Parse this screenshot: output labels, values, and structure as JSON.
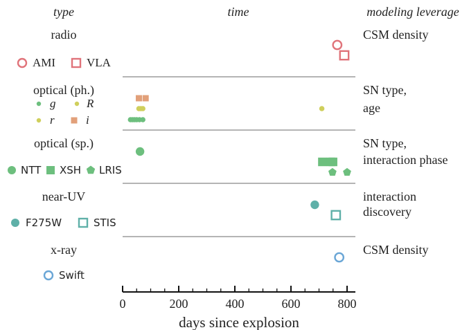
{
  "chart_data": {
    "type": "scatter",
    "column_headers": {
      "type": "type",
      "time": "time",
      "leverage": "modeling leverage"
    },
    "xlabel": "days since explosion",
    "xlim": [
      0,
      860
    ],
    "xticks": [
      0,
      200,
      400,
      600,
      800
    ],
    "rows": [
      {
        "id": "radio",
        "label": "radio",
        "leverage": [
          "CSM density"
        ],
        "instruments": [
          {
            "name": "AMI",
            "color": "#e0737a",
            "marker": "circle-open",
            "points": [
              765
            ]
          },
          {
            "name": "VLA",
            "color": "#e0737a",
            "marker": "square-open",
            "points": [
              790
            ]
          }
        ]
      },
      {
        "id": "optical-ph",
        "label": "optical (ph.)",
        "leverage": [
          "SN type,",
          "age"
        ],
        "instruments": [
          {
            "name": "g",
            "color": "#6dbf7e",
            "marker": "dot",
            "points": [
              28,
              35,
              42,
              50,
              60,
              72
            ]
          },
          {
            "name": "R",
            "color": "#cfcf5c",
            "marker": "dot",
            "points": [
              710
            ]
          },
          {
            "name": "r",
            "color": "#cfcf5c",
            "marker": "dot",
            "points": [
              58,
              65,
              72
            ]
          },
          {
            "name": "i",
            "color": "#e2a07a",
            "marker": "square",
            "points": [
              58,
              82
            ]
          }
        ]
      },
      {
        "id": "optical-sp",
        "label": "optical (sp.)",
        "leverage": [
          "SN type,",
          "interaction phase"
        ],
        "instruments": [
          {
            "name": "NTT",
            "color": "#6dbf7e",
            "marker": "circle",
            "points": [
              62
            ]
          },
          {
            "name": "XSH",
            "color": "#6dbf7e",
            "marker": "square",
            "points": [
              712,
              742,
              750
            ]
          },
          {
            "name": "LRIS",
            "color": "#6dbf7e",
            "marker": "pentagon",
            "points": [
              748,
              800
            ]
          }
        ]
      },
      {
        "id": "near-uv",
        "label": "near-UV",
        "leverage": [
          "interaction",
          "discovery"
        ],
        "instruments": [
          {
            "name": "F275W",
            "color": "#5fb0a8",
            "marker": "circle",
            "points": [
              685
            ]
          },
          {
            "name": "STIS",
            "color": "#5fb0a8",
            "marker": "square-open",
            "points": [
              760
            ]
          }
        ]
      },
      {
        "id": "x-ray",
        "label": "x-ray",
        "leverage": [
          "CSM density"
        ],
        "instruments": [
          {
            "name": "Swift",
            "color": "#6aa6d6",
            "marker": "circle-open",
            "points": [
              772
            ]
          }
        ]
      }
    ]
  }
}
